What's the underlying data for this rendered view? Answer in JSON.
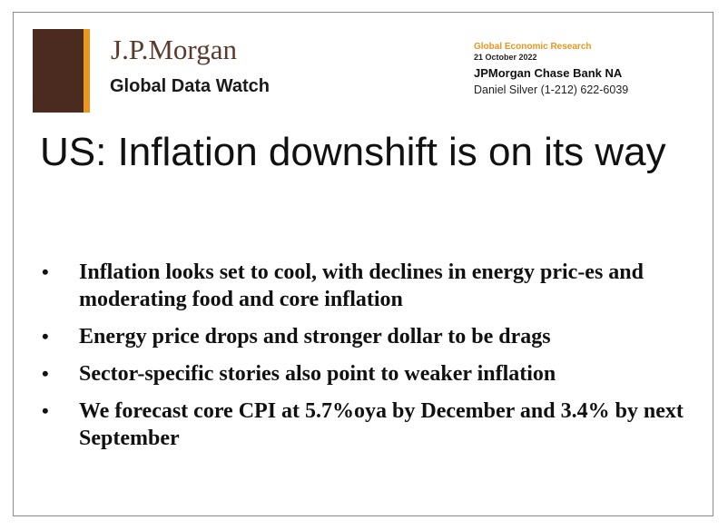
{
  "header": {
    "brand": "J.P.Morgan",
    "publication": "Global Data Watch",
    "department": "Global Economic Research",
    "date": "21 October 2022",
    "bank": "JPMorgan Chase Bank NA",
    "contact": "Daniel Silver (1-212) 622-6039"
  },
  "colors": {
    "logo_brown": "#4b2a1f",
    "logo_orange": "#e8961f",
    "brand_text": "#5a3a2c",
    "department_text": "#e8961f"
  },
  "slide": {
    "title": "US: Inflation downshift is on its way",
    "bullet_glyph": "•",
    "bullets": [
      "Inflation looks set to cool, with declines in energy pric-es and moderating food and core inflation",
      "Energy price drops and stronger dollar to be drags",
      "Sector-specific stories also point to weaker inflation",
      "We forecast core CPI at 5.7%oya by December and 3.4% by next September"
    ]
  }
}
